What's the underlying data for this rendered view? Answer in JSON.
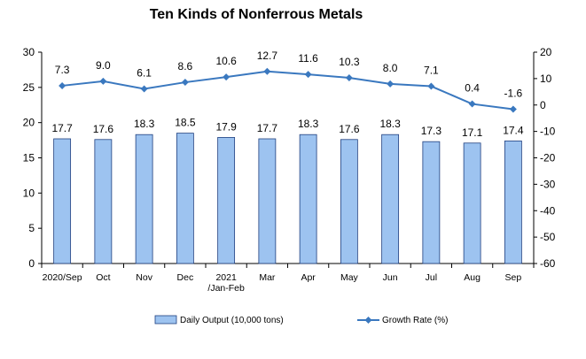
{
  "chart_data": {
    "type": "bar",
    "title": "Ten Kinds of Nonferrous Metals",
    "categories": [
      [
        "2020/Sep"
      ],
      [
        "Oct"
      ],
      [
        "Nov"
      ],
      [
        "Dec"
      ],
      [
        "2021",
        "/Jan-Feb"
      ],
      [
        "Mar"
      ],
      [
        "Apr"
      ],
      [
        "May"
      ],
      [
        "Jun"
      ],
      [
        "Jul"
      ],
      [
        "Aug"
      ],
      [
        "Sep"
      ]
    ],
    "series": [
      {
        "name": "Daily Output (10,000 tons)",
        "type": "bar",
        "axis": "left",
        "color": "#9DC3F0",
        "values": [
          17.7,
          17.6,
          18.3,
          18.5,
          17.9,
          17.7,
          18.3,
          17.6,
          18.3,
          17.3,
          17.1,
          17.4
        ]
      },
      {
        "name": "Growth Rate (%)",
        "type": "line",
        "axis": "right",
        "color": "#3A78BF",
        "values": [
          7.3,
          9.0,
          6.1,
          8.6,
          10.6,
          12.7,
          11.6,
          10.3,
          8.0,
          7.1,
          0.4,
          -1.6
        ]
      }
    ],
    "y_left": {
      "min": 0,
      "max": 30,
      "step": 5
    },
    "y_right": {
      "min": -60,
      "max": 20,
      "step": 10
    },
    "grid": false,
    "legend": "bottom"
  }
}
